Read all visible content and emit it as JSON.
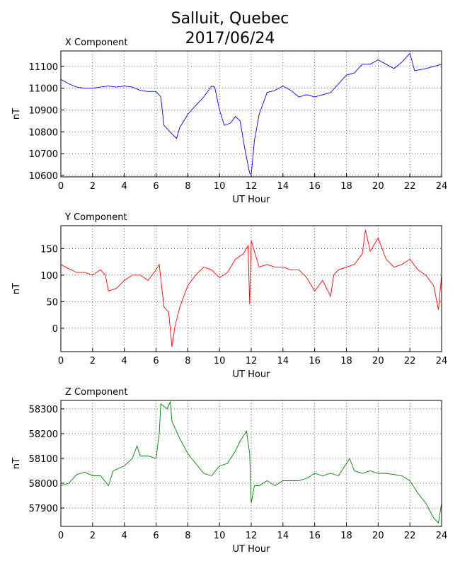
{
  "title_lines": [
    "Salluit, Quebec",
    "2017/06/24"
  ],
  "chart_data": [
    {
      "type": "line",
      "title": "X Component",
      "xlabel": "UT Hour",
      "ylabel": "nT",
      "color": "#0000ff",
      "grid": true,
      "xlim": [
        0,
        24
      ],
      "xticks": [
        0,
        2,
        4,
        6,
        8,
        10,
        12,
        14,
        16,
        18,
        20,
        22,
        24
      ],
      "ylim": [
        10593,
        11171
      ],
      "yticks": [
        10600,
        10700,
        10800,
        10900,
        11000,
        11100
      ],
      "x": [
        0,
        0.5,
        1,
        1.5,
        2,
        2.5,
        3,
        3.5,
        4,
        4.5,
        5,
        5.5,
        6,
        6.3,
        6.5,
        7,
        7.3,
        7.5,
        8,
        8.5,
        9,
        9.5,
        9.7,
        10,
        10.3,
        10.7,
        11,
        11.3,
        11.6,
        11.9,
        12,
        12.2,
        12.5,
        13,
        13.5,
        14,
        14.5,
        15,
        15.5,
        16,
        16.5,
        17,
        17.5,
        18,
        18.5,
        19,
        19.5,
        20,
        20.5,
        21,
        21.5,
        22,
        22.3,
        23,
        23.5,
        24
      ],
      "values": [
        11040,
        11020,
        11005,
        11000,
        11000,
        11005,
        11010,
        11005,
        11010,
        11005,
        10990,
        10985,
        10985,
        10960,
        10830,
        10790,
        10770,
        10820,
        10880,
        10920,
        10960,
        11010,
        11005,
        10900,
        10830,
        10840,
        10870,
        10850,
        10720,
        10610,
        10605,
        10760,
        10880,
        10980,
        10990,
        11010,
        10990,
        10960,
        10970,
        10960,
        10970,
        10980,
        11020,
        11060,
        11070,
        11110,
        11110,
        11130,
        11110,
        11090,
        11120,
        11160,
        11080,
        11090,
        11100,
        11110
      ]
    },
    {
      "type": "line",
      "title": "Y Component",
      "xlabel": "UT Hour",
      "ylabel": "nT",
      "color": "#ff0000",
      "grid": true,
      "xlim": [
        0,
        24
      ],
      "xticks": [
        0,
        2,
        4,
        6,
        8,
        10,
        12,
        14,
        16,
        18,
        20,
        22,
        24
      ],
      "ylim": [
        -44,
        193
      ],
      "yticks": [
        0,
        50,
        100,
        150
      ],
      "x": [
        0,
        0.5,
        1,
        1.5,
        2,
        2.5,
        2.8,
        3,
        3.5,
        4,
        4.5,
        5,
        5.5,
        6,
        6.2,
        6.5,
        6.8,
        7,
        7.2,
        7.5,
        8,
        8.5,
        9,
        9.5,
        10,
        10.5,
        11,
        11.5,
        11.8,
        11.9,
        12,
        12.5,
        13,
        13.5,
        14,
        14.5,
        15,
        15.5,
        16,
        16.5,
        17,
        17.2,
        17.5,
        18,
        18.5,
        19,
        19.2,
        19.5,
        20,
        20.5,
        21,
        21.5,
        22,
        22.5,
        23,
        23.5,
        23.8,
        24
      ],
      "values": [
        120,
        112,
        105,
        105,
        100,
        110,
        100,
        70,
        75,
        90,
        100,
        100,
        90,
        110,
        120,
        40,
        30,
        -35,
        5,
        40,
        80,
        100,
        115,
        110,
        95,
        105,
        130,
        140,
        155,
        45,
        165,
        115,
        120,
        115,
        115,
        110,
        110,
        95,
        70,
        90,
        60,
        100,
        110,
        115,
        120,
        140,
        185,
        145,
        170,
        130,
        115,
        120,
        130,
        110,
        100,
        80,
        35,
        100
      ]
    },
    {
      "type": "line",
      "title": "Z Component",
      "xlabel": "UT Hour",
      "ylabel": "nT",
      "color": "#008000",
      "grid": true,
      "xlim": [
        0,
        24
      ],
      "xticks": [
        0,
        2,
        4,
        6,
        8,
        10,
        12,
        14,
        16,
        18,
        20,
        22,
        24
      ],
      "ylim": [
        57826,
        58334
      ],
      "yticks": [
        57900,
        58000,
        58100,
        58200,
        58300
      ],
      "x": [
        0,
        0.5,
        1,
        1.5,
        2,
        2.5,
        3,
        3.3,
        4,
        4.5,
        4.8,
        5,
        5.5,
        6,
        6.2,
        6.3,
        6.7,
        6.9,
        7,
        7.5,
        8,
        8.5,
        9,
        9.5,
        10,
        10.5,
        11,
        11.3,
        11.7,
        11.9,
        12,
        12.2,
        12.5,
        13,
        13.5,
        14,
        14.5,
        15,
        15.5,
        16,
        16.5,
        17,
        17.5,
        18,
        18.2,
        18.5,
        19,
        19.5,
        20,
        20.5,
        21,
        21.5,
        22,
        22.5,
        23,
        23.5,
        23.8,
        24
      ],
      "values": [
        57990,
        58000,
        58035,
        58045,
        58030,
        58030,
        57990,
        58050,
        58070,
        58100,
        58150,
        58110,
        58110,
        58100,
        58200,
        58320,
        58300,
        58330,
        58250,
        58180,
        58120,
        58080,
        58040,
        58030,
        58070,
        58080,
        58130,
        58170,
        58210,
        58120,
        57920,
        57990,
        57990,
        58010,
        57990,
        58010,
        58010,
        58010,
        58020,
        58040,
        58030,
        58040,
        58030,
        58080,
        58100,
        58050,
        58040,
        58050,
        58040,
        58040,
        58035,
        58030,
        58010,
        57960,
        57920,
        57860,
        57840,
        57920
      ]
    }
  ]
}
